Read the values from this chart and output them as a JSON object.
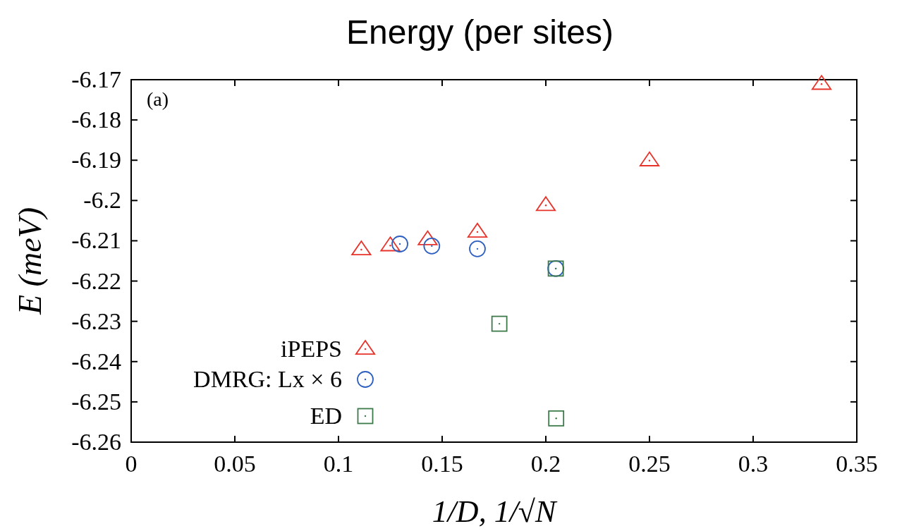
{
  "chart_data": {
    "type": "scatter",
    "title": "Energy (per sites)",
    "xlabel": "1/D, 1/√N",
    "ylabel": "E (meV)",
    "annotations": [
      "(a)"
    ],
    "xlim": [
      0,
      0.35
    ],
    "xticks": [
      0,
      0.05,
      0.1,
      0.15,
      0.2,
      0.25,
      0.3,
      0.35
    ],
    "ylim": [
      -6.26,
      -6.17
    ],
    "yticks": [
      -6.26,
      -6.25,
      -6.24,
      -6.23,
      -6.22,
      -6.21,
      -6.2,
      -6.19,
      -6.18,
      -6.17
    ],
    "grid": false,
    "legend": "bottom left",
    "series": [
      {
        "name": "iPEPS",
        "color": "#e8332a",
        "marker": "triangle",
        "x": [
          0.111,
          0.125,
          0.143,
          0.167,
          0.2,
          0.25,
          0.333
        ],
        "values": [
          -6.2122,
          -6.2112,
          -6.2097,
          -6.2078,
          -6.2012,
          -6.1901,
          -6.1711
        ]
      },
      {
        "name": "DMRG: Lx × 6",
        "color": "#2d5fc0",
        "marker": "circle",
        "x": [
          0.1296,
          0.145,
          0.167,
          0.2048
        ],
        "values": [
          -6.2108,
          -6.2113,
          -6.212,
          -6.2169
        ]
      },
      {
        "name": "ED",
        "color": "#3d7a4a",
        "marker": "square",
        "x": [
          0.1776,
          0.2048,
          0.205
        ],
        "values": [
          -6.2306,
          -6.2169,
          -6.2541
        ]
      }
    ]
  }
}
